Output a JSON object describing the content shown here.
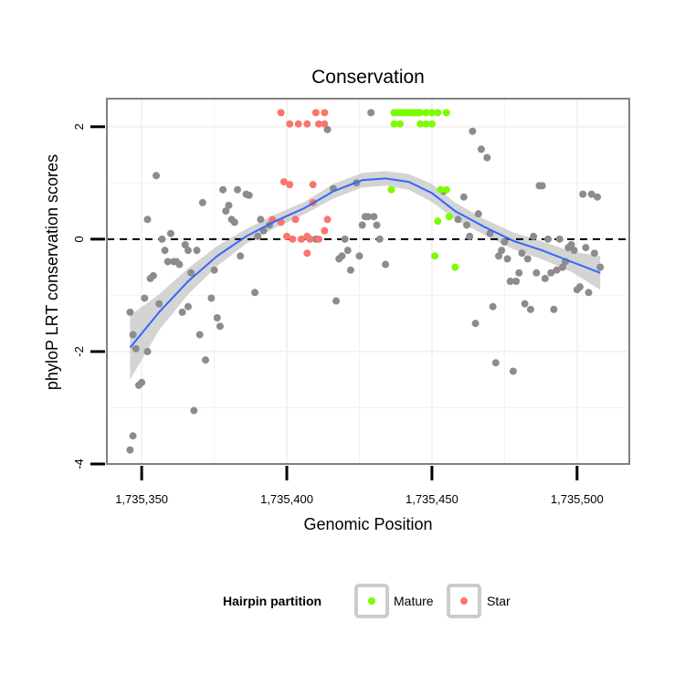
{
  "chart_data": {
    "type": "scatter",
    "title": "Conservation",
    "xlabel": "Genomic Position",
    "ylabel": "phyloP LRT conservation scores",
    "xlim": [
      1735338,
      1735518
    ],
    "ylim": [
      -4,
      2.5
    ],
    "x_ticks": [
      1735350,
      1735400,
      1735450,
      1735500
    ],
    "x_tick_labels": [
      "1,735,350",
      "1,735,400",
      "1,735,450",
      "1,735,500"
    ],
    "y_ticks": [
      -4,
      -2,
      0,
      2
    ],
    "y_tick_labels": [
      "-4",
      "-2",
      "0",
      "2"
    ],
    "reference_line": {
      "y": 0,
      "style": "dashed"
    },
    "grid": true,
    "legend": {
      "title": "Hairpin partition",
      "position": "bottom",
      "entries": [
        {
          "label": "Mature",
          "color": "#7CFC00"
        },
        {
          "label": "Star",
          "color": "#F8766D"
        }
      ]
    },
    "colors": {
      "background_points": "#8C8C8C",
      "mature": "#7CFC00",
      "star": "#F8766D",
      "smooth_line": "#3366FF",
      "confidence_band": "#CCCCCC",
      "panel_border": "#808080"
    },
    "background_points": [
      [
        1735346,
        -3.75
      ],
      [
        1735347,
        -3.5
      ],
      [
        1735347,
        -1.7
      ],
      [
        1735346,
        -1.3
      ],
      [
        1735349,
        -2.6
      ],
      [
        1735350,
        -2.55
      ],
      [
        1735348,
        -1.95
      ],
      [
        1735352,
        -2.0
      ],
      [
        1735351,
        -1.05
      ],
      [
        1735353,
        -0.7
      ],
      [
        1735354,
        -0.65
      ],
      [
        1735356,
        -1.15
      ],
      [
        1735352,
        0.35
      ],
      [
        1735355,
        1.13
      ],
      [
        1735358,
        -0.2
      ],
      [
        1735357,
        0.0
      ],
      [
        1735359,
        -0.4
      ],
      [
        1735360,
        0.1
      ],
      [
        1735361,
        -0.4
      ],
      [
        1735362,
        -0.4
      ],
      [
        1735363,
        -0.45
      ],
      [
        1735364,
        -1.3
      ],
      [
        1735365,
        -0.1
      ],
      [
        1735366,
        -0.2
      ],
      [
        1735366,
        -1.2
      ],
      [
        1735367,
        -0.6
      ],
      [
        1735368,
        -3.05
      ],
      [
        1735369,
        -0.2
      ],
      [
        1735370,
        -1.7
      ],
      [
        1735371,
        0.65
      ],
      [
        1735372,
        -2.15
      ],
      [
        1735374,
        -1.05
      ],
      [
        1735375,
        -0.55
      ],
      [
        1735376,
        -1.4
      ],
      [
        1735377,
        -1.55
      ],
      [
        1735378,
        0.88
      ],
      [
        1735379,
        0.5
      ],
      [
        1735380,
        0.6
      ],
      [
        1735381,
        0.35
      ],
      [
        1735382,
        0.3
      ],
      [
        1735383,
        0.88
      ],
      [
        1735384,
        -0.3
      ],
      [
        1735386,
        0.8
      ],
      [
        1735387,
        0.78
      ],
      [
        1735389,
        -0.95
      ],
      [
        1735390,
        0.05
      ],
      [
        1735391,
        0.35
      ],
      [
        1735392,
        0.15
      ],
      [
        1735394,
        0.25
      ],
      [
        1735410,
        0.0
      ],
      [
        1735414,
        1.95
      ],
      [
        1735416,
        0.9
      ],
      [
        1735417,
        -1.1
      ],
      [
        1735418,
        -0.35
      ],
      [
        1735419,
        -0.3
      ],
      [
        1735420,
        0.0
      ],
      [
        1735421,
        -0.2
      ],
      [
        1735422,
        -0.55
      ],
      [
        1735424,
        1.0
      ],
      [
        1735425,
        -0.3
      ],
      [
        1735426,
        0.25
      ],
      [
        1735427,
        0.4
      ],
      [
        1735428,
        0.4
      ],
      [
        1735429,
        2.25
      ],
      [
        1735430,
        0.4
      ],
      [
        1735431,
        0.25
      ],
      [
        1735432,
        0.0
      ],
      [
        1735434,
        -0.45
      ],
      [
        1735454,
        0.85
      ],
      [
        1735459,
        0.35
      ],
      [
        1735461,
        0.75
      ],
      [
        1735462,
        0.25
      ],
      [
        1735463,
        0.05
      ],
      [
        1735464,
        1.92
      ],
      [
        1735465,
        -1.5
      ],
      [
        1735466,
        0.45
      ],
      [
        1735467,
        1.6
      ],
      [
        1735469,
        1.45
      ],
      [
        1735470,
        0.1
      ],
      [
        1735471,
        -1.2
      ],
      [
        1735472,
        -2.2
      ],
      [
        1735473,
        -0.3
      ],
      [
        1735474,
        -0.2
      ],
      [
        1735475,
        -0.05
      ],
      [
        1735476,
        -0.35
      ],
      [
        1735477,
        -0.75
      ],
      [
        1735478,
        -2.35
      ],
      [
        1735479,
        -0.75
      ],
      [
        1735480,
        -0.6
      ],
      [
        1735481,
        -0.25
      ],
      [
        1735482,
        -1.15
      ],
      [
        1735483,
        -0.35
      ],
      [
        1735484,
        -1.25
      ],
      [
        1735485,
        0.05
      ],
      [
        1735486,
        -0.6
      ],
      [
        1735487,
        0.95
      ],
      [
        1735488,
        0.95
      ],
      [
        1735489,
        -0.7
      ],
      [
        1735490,
        0.0
      ],
      [
        1735491,
        -0.6
      ],
      [
        1735492,
        -1.25
      ],
      [
        1735493,
        -0.55
      ],
      [
        1735494,
        0.0
      ],
      [
        1735495,
        -0.5
      ],
      [
        1735496,
        -0.4
      ],
      [
        1735497,
        -0.15
      ],
      [
        1735498,
        -0.1
      ],
      [
        1735499,
        -0.2
      ],
      [
        1735500,
        -0.9
      ],
      [
        1735501,
        -0.85
      ],
      [
        1735502,
        0.8
      ],
      [
        1735503,
        -0.15
      ],
      [
        1735504,
        -0.95
      ],
      [
        1735505,
        0.8
      ],
      [
        1735506,
        -0.25
      ],
      [
        1735507,
        0.75
      ],
      [
        1735508,
        -0.5
      ]
    ],
    "series": [
      {
        "name": "Mature",
        "color": "#7CFC00",
        "points": [
          [
            1735437,
            2.25
          ],
          [
            1735438,
            2.25
          ],
          [
            1735439,
            2.25
          ],
          [
            1735440,
            2.25
          ],
          [
            1735441,
            2.25
          ],
          [
            1735442,
            2.25
          ],
          [
            1735443,
            2.25
          ],
          [
            1735444,
            2.25
          ],
          [
            1735445,
            2.25
          ],
          [
            1735446,
            2.25
          ],
          [
            1735448,
            2.25
          ],
          [
            1735450,
            2.25
          ],
          [
            1735452,
            2.25
          ],
          [
            1735455,
            2.25
          ],
          [
            1735437,
            2.05
          ],
          [
            1735439,
            2.05
          ],
          [
            1735446,
            2.05
          ],
          [
            1735448,
            2.05
          ],
          [
            1735450,
            2.05
          ],
          [
            1735436,
            0.88
          ],
          [
            1735453,
            0.88
          ],
          [
            1735455,
            0.88
          ],
          [
            1735452,
            0.32
          ],
          [
            1735456,
            0.4
          ],
          [
            1735451,
            -0.3
          ],
          [
            1735458,
            -0.5
          ]
        ]
      },
      {
        "name": "Star",
        "color": "#F8766D",
        "points": [
          [
            1735398,
            2.25
          ],
          [
            1735410,
            2.25
          ],
          [
            1735413,
            2.25
          ],
          [
            1735401,
            2.05
          ],
          [
            1735404,
            2.05
          ],
          [
            1735407,
            2.05
          ],
          [
            1735411,
            2.05
          ],
          [
            1735413,
            2.05
          ],
          [
            1735399,
            1.02
          ],
          [
            1735401,
            0.97
          ],
          [
            1735409,
            0.97
          ],
          [
            1735409,
            0.65
          ],
          [
            1735395,
            0.35
          ],
          [
            1735398,
            0.3
          ],
          [
            1735403,
            0.35
          ],
          [
            1735414,
            0.35
          ],
          [
            1735413,
            0.15
          ],
          [
            1735400,
            0.05
          ],
          [
            1735402,
            0.0
          ],
          [
            1735405,
            0.0
          ],
          [
            1735407,
            0.05
          ],
          [
            1735408,
            0.0
          ],
          [
            1735411,
            0.0
          ],
          [
            1735407,
            -0.25
          ]
        ]
      }
    ],
    "smooth": {
      "x": [
        1735346,
        1735356,
        1735366,
        1735376,
        1735386,
        1735396,
        1735406,
        1735416,
        1735426,
        1735434,
        1735442,
        1735450,
        1735458,
        1735468,
        1735478,
        1735488,
        1735498,
        1735508
      ],
      "y": [
        -1.93,
        -1.3,
        -0.75,
        -0.3,
        0.05,
        0.32,
        0.55,
        0.85,
        1.05,
        1.08,
        1.02,
        0.82,
        0.5,
        0.22,
        -0.03,
        -0.2,
        -0.4,
        -0.6
      ],
      "lower": [
        -2.5,
        -1.62,
        -0.98,
        -0.48,
        -0.08,
        0.2,
        0.44,
        0.72,
        0.92,
        0.95,
        0.88,
        0.66,
        0.35,
        0.08,
        -0.18,
        -0.36,
        -0.58,
        -0.9
      ],
      "upper": [
        -1.36,
        -0.98,
        -0.52,
        -0.12,
        0.18,
        0.44,
        0.66,
        0.98,
        1.18,
        1.21,
        1.16,
        0.98,
        0.65,
        0.36,
        0.12,
        -0.04,
        -0.22,
        -0.3
      ]
    }
  }
}
